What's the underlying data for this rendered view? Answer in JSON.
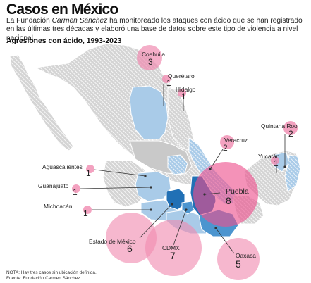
{
  "header": {
    "title": "Casos en México",
    "intro_before": "La Fundación ",
    "intro_emphasis": "Carmen Sánchez",
    "intro_after": " ha monitoreado los ataques con ácido que se han registrado en las últimas tres décadas y elaboró una base de datos sobre este tipo de violencia a nivel nacional.",
    "subtitle": "Agresiones con ácido, 1993-2023"
  },
  "colors": {
    "circle_pink": "#f08bb0",
    "circle_pink_strong": "#ee4f8c",
    "state_blue_light": "#a9cbe8",
    "state_blue": "#4c95cf",
    "state_blue_dark": "#2170b5",
    "state_gray": "#c9c9c9"
  },
  "cases": [
    {
      "state": "Coahuila",
      "count": "3"
    },
    {
      "state": "Querétaro",
      "count": "1"
    },
    {
      "state": "Hidalgo",
      "count": "1"
    },
    {
      "state": "Quintana Roo",
      "count": "2"
    },
    {
      "state": "Veracruz",
      "count": "2"
    },
    {
      "state": "Yucatán",
      "count": "1"
    },
    {
      "state": "Aguascalientes",
      "count": "1"
    },
    {
      "state": "Guanajuato",
      "count": "1"
    },
    {
      "state": "Puebla",
      "count": "8"
    },
    {
      "state": "Michoacán",
      "count": "1"
    },
    {
      "state": "Estado de México",
      "count": "6"
    },
    {
      "state": "CDMX",
      "count": "7"
    },
    {
      "state": "Oaxaca",
      "count": "5"
    }
  ],
  "footnotes": {
    "note": "NOTA: Hay tres casos sin ubicación definida.",
    "source": "Fuente: Fundación Carmen Sánchez."
  }
}
